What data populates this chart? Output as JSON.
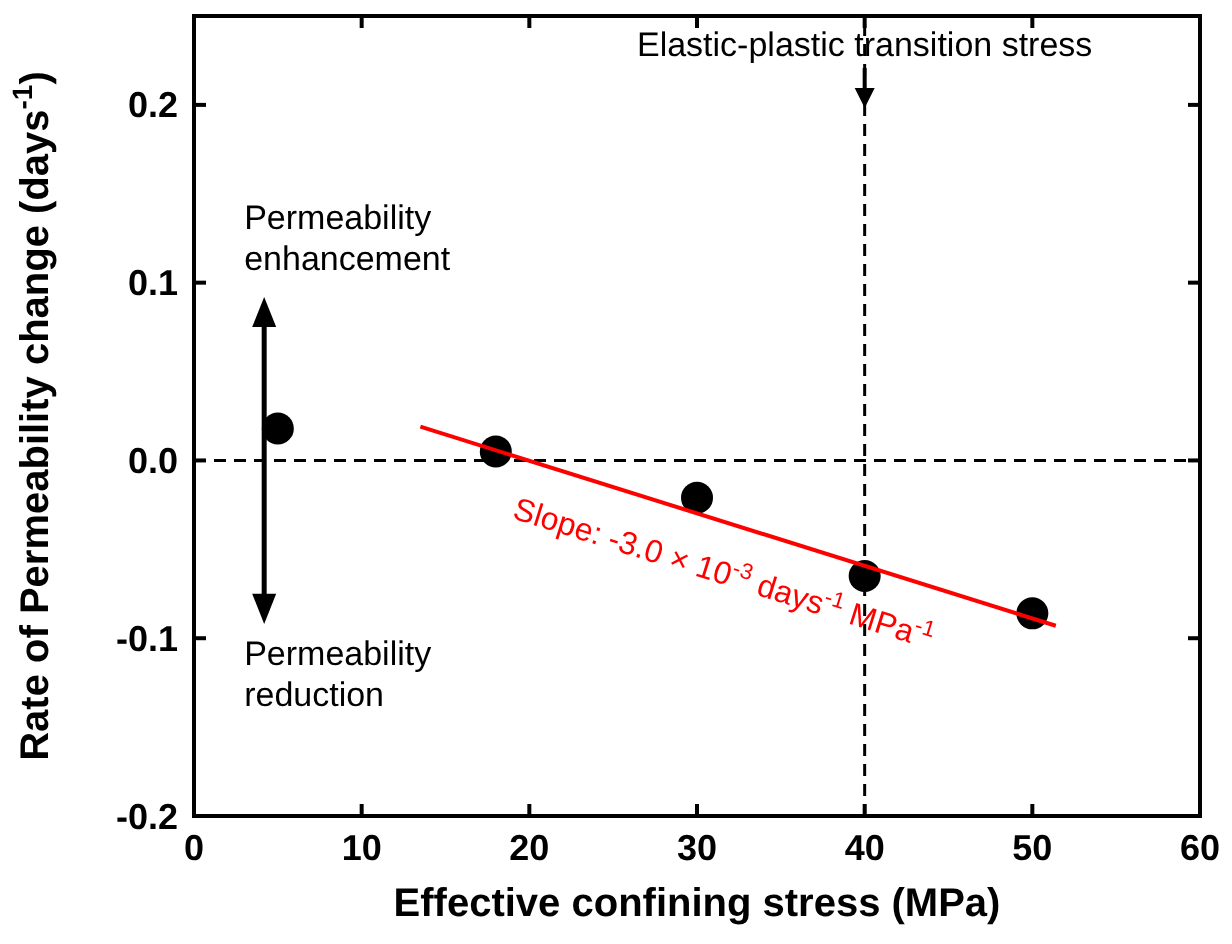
{
  "chart_data": {
    "type": "scatter",
    "xlabel": "Effective confining stress (MPa)",
    "ylabel": "Rate of Permeability change (days$^{-1}$)",
    "xlim": [
      0,
      60
    ],
    "xticks": [
      0,
      10,
      20,
      30,
      40,
      50,
      60
    ],
    "ylim": [
      -0.2,
      0.25
    ],
    "yticks": [
      -0.2,
      -0.1,
      {
        "value": 0,
        "label": "0.0"
      },
      0.1,
      0.2
    ],
    "grid": false,
    "marker": "circle",
    "series": [
      {
        "color": "#000000",
        "x": [
          5,
          18,
          30,
          40,
          50
        ],
        "values": [
          0.018,
          0.005,
          -0.021,
          -0.065,
          -0.086
        ]
      },
      {
        "type": "line",
        "color": "#ff0000",
        "line_style": "solid",
        "marker": "none",
        "x": [
          13.5,
          51.4
        ],
        "values": [
          0.019,
          -0.093
        ]
      }
    ],
    "ref_lines": [
      {
        "axis": "y",
        "value": 0,
        "color": "#000000",
        "line_style": "dashed"
      },
      {
        "axis": "x",
        "value": 40,
        "label": "Elastic-plastic transition stress",
        "color": "#000000",
        "line_style": "dashed"
      }
    ],
    "annotations": [
      "Permeability enhancement",
      "Permeability reduction",
      "Slope: -3.0 × 10$^{-3}$ days$^{-1}$ MPa$^{-1}$"
    ]
  }
}
